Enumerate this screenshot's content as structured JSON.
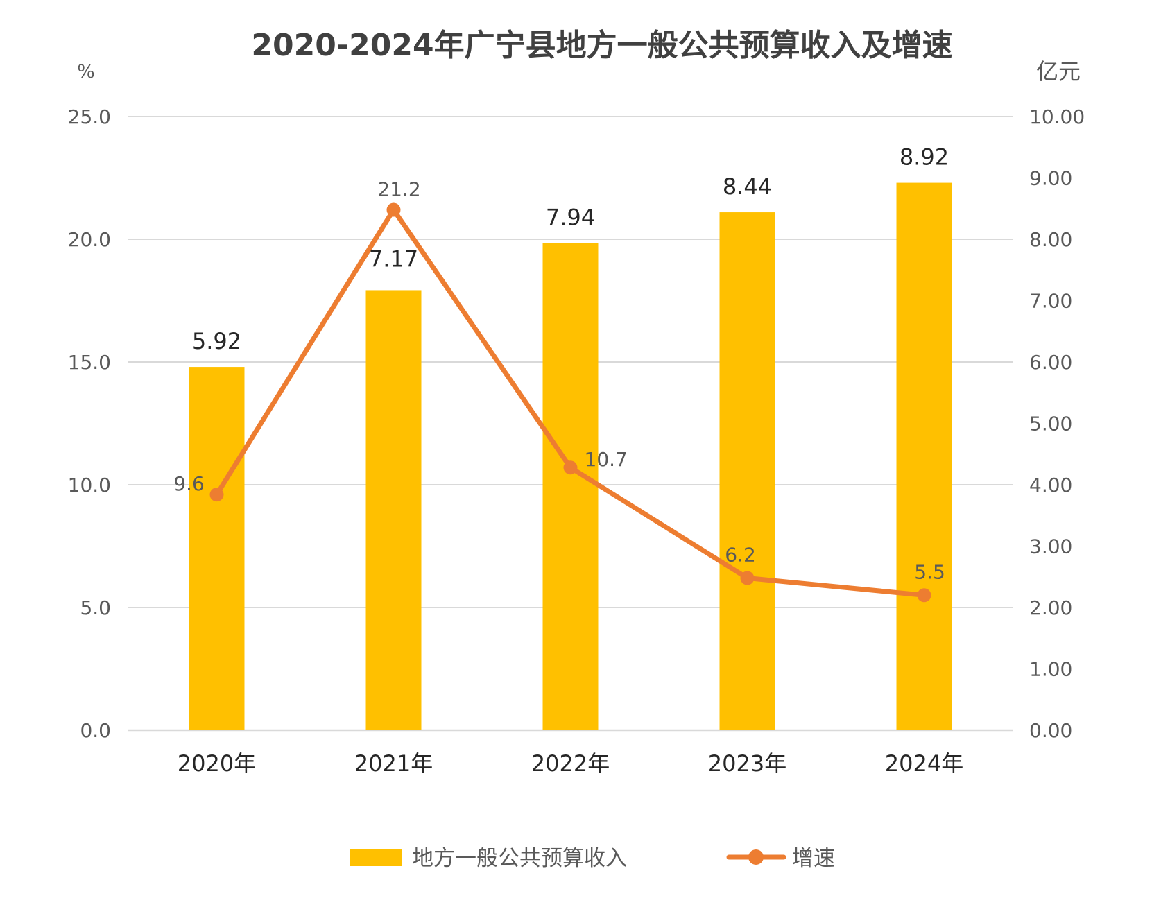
{
  "chart_data": {
    "type": "bar",
    "title": "2020-2024年广宁县地方一般公共预算收入及增速",
    "categories": [
      "2020年",
      "2021年",
      "2022年",
      "2023年",
      "2024年"
    ],
    "series": [
      {
        "name": "地方一般公共预算收入",
        "type": "bar",
        "axis": "right",
        "values": [
          5.92,
          7.17,
          7.94,
          8.44,
          8.92
        ],
        "labels": [
          "5.92",
          "7.17",
          "7.94",
          "8.44",
          "8.92"
        ],
        "color": "#FFC000"
      },
      {
        "name": "增速",
        "type": "line",
        "axis": "left",
        "values": [
          9.6,
          21.2,
          10.7,
          6.2,
          5.5
        ],
        "labels": [
          "9.6",
          "21.2",
          "10.7",
          "6.2",
          "5.5"
        ],
        "color": "#ED7D31"
      }
    ],
    "y_left": {
      "unit": "%",
      "ylim": [
        0,
        25
      ],
      "ticks": [
        "0.0",
        "5.0",
        "10.0",
        "15.0",
        "20.0",
        "25.0"
      ]
    },
    "y_right": {
      "unit": "亿元",
      "ylim": [
        0,
        10
      ],
      "ticks": [
        "0.00",
        "1.00",
        "2.00",
        "3.00",
        "4.00",
        "5.00",
        "6.00",
        "7.00",
        "8.00",
        "9.00",
        "10.00"
      ]
    },
    "grid": true,
    "legend_position": "bottom",
    "colors": {
      "bar": "#FFC000",
      "line": "#ED7D31",
      "grid": "#D9D9D9",
      "axis_text": "#595959",
      "title": "#404040"
    }
  }
}
